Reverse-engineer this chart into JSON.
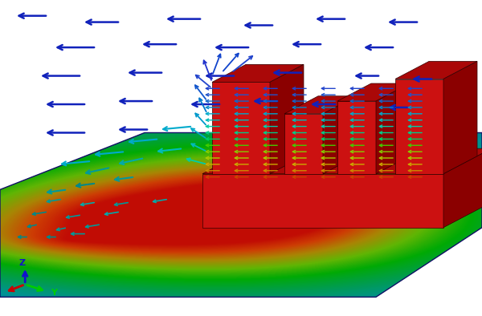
{
  "fig_width": 6.0,
  "fig_height": 3.94,
  "dpi": 100,
  "bg_color": "#ffffff",
  "border_color": "#aaaaaa",
  "red_bright": "#cc1111",
  "red_dark": "#8b0000",
  "red_mid": "#aa0808",
  "red_side": "#771010",
  "dark_blue_floor": "#0a0f5a",
  "axis_x_color": "#cc0000",
  "axis_y_color": "#00cc00",
  "axis_z_color": "#1111cc",
  "arrow_blue": "#1122bb",
  "arrow_cyan": "#00bbcc",
  "arrow_teal": "#009999"
}
